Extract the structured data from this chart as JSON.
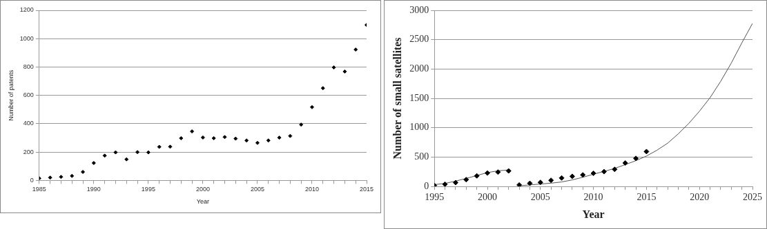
{
  "chart_data": [
    {
      "type": "scatter",
      "xlabel": "Year",
      "ylabel": "Number of patents",
      "grid": "y",
      "marker": "diamond",
      "legend": false,
      "xlim": [
        1985,
        2015
      ],
      "ylim": [
        0,
        1200
      ],
      "xticks": [
        1985,
        {
          "value": 1986,
          "label": null
        },
        {
          "value": 1987,
          "label": null
        },
        {
          "value": 1988,
          "label": null
        },
        {
          "value": 1989,
          "label": null
        },
        1990,
        {
          "value": 1991,
          "label": null
        },
        {
          "value": 1992,
          "label": null
        },
        {
          "value": 1993,
          "label": null
        },
        {
          "value": 1994,
          "label": null
        },
        1995,
        {
          "value": 1996,
          "label": null
        },
        {
          "value": 1997,
          "label": null
        },
        {
          "value": 1998,
          "label": null
        },
        {
          "value": 1999,
          "label": null
        },
        2000,
        {
          "value": 2001,
          "label": null
        },
        {
          "value": 2002,
          "label": null
        },
        {
          "value": 2003,
          "label": null
        },
        {
          "value": 2004,
          "label": null
        },
        2005,
        {
          "value": 2006,
          "label": null
        },
        {
          "value": 2007,
          "label": null
        },
        {
          "value": 2008,
          "label": null
        },
        {
          "value": 2009,
          "label": null
        },
        2010,
        {
          "value": 2011,
          "label": null
        },
        {
          "value": 2012,
          "label": null
        },
        {
          "value": 2013,
          "label": null
        },
        {
          "value": 2014,
          "label": null
        },
        2015
      ],
      "yticks": [
        0,
        200,
        400,
        600,
        800,
        1000,
        1200
      ],
      "series": [
        {
          "color": "#000000",
          "x": [
            1985,
            1986,
            1987,
            1988,
            1989,
            1990,
            1991,
            1992,
            1993,
            1994,
            1995,
            1996,
            1997,
            1998,
            1999,
            2000,
            2001,
            2002,
            2003,
            2004,
            2005,
            2006,
            2007,
            2008,
            2009,
            2010,
            2011,
            2012,
            2013,
            2014,
            2015
          ],
          "values": [
            15,
            20,
            25,
            32,
            60,
            123,
            175,
            198,
            149,
            200,
            198,
            237,
            238,
            298,
            346,
            303,
            298,
            306,
            295,
            282,
            265,
            282,
            302,
            314,
            394,
            517,
            651,
            797,
            768,
            923,
            1097
          ]
        }
      ]
    },
    {
      "type": "scatter",
      "xlabel": "Year",
      "ylabel": "Number of small satellites",
      "grid": "y",
      "marker": "diamond",
      "legend": false,
      "xlim": [
        1995,
        2025
      ],
      "ylim": [
        0,
        3000
      ],
      "xticks": [
        1995,
        {
          "value": 1996,
          "label": null
        },
        {
          "value": 1997,
          "label": null
        },
        {
          "value": 1998,
          "label": null
        },
        {
          "value": 1999,
          "label": null
        },
        2000,
        {
          "value": 2001,
          "label": null
        },
        {
          "value": 2002,
          "label": null
        },
        {
          "value": 2003,
          "label": null
        },
        {
          "value": 2004,
          "label": null
        },
        2005,
        {
          "value": 2006,
          "label": null
        },
        {
          "value": 2007,
          "label": null
        },
        {
          "value": 2008,
          "label": null
        },
        {
          "value": 2009,
          "label": null
        },
        2010,
        {
          "value": 2011,
          "label": null
        },
        {
          "value": 2012,
          "label": null
        },
        {
          "value": 2013,
          "label": null
        },
        {
          "value": 2014,
          "label": null
        },
        2015,
        {
          "value": 2016,
          "label": null
        },
        {
          "value": 2017,
          "label": null
        },
        {
          "value": 2018,
          "label": null
        },
        {
          "value": 2019,
          "label": null
        },
        2020,
        {
          "value": 2021,
          "label": null
        },
        {
          "value": 2022,
          "label": null
        },
        {
          "value": 2023,
          "label": null
        },
        {
          "value": 2024,
          "label": null
        },
        2025
      ],
      "yticks": [
        0,
        500,
        1000,
        1500,
        2000,
        2500,
        3000
      ],
      "series": [
        {
          "color": "#000000",
          "x": [
            1995,
            1996,
            1997,
            1998,
            1999,
            2000,
            2001,
            2002,
            2003,
            2004,
            2005,
            2006,
            2007,
            2008,
            2009,
            2010,
            2011,
            2012,
            2013,
            2014,
            2015
          ],
          "values": [
            16,
            36,
            64,
            115,
            179,
            227,
            243,
            263,
            24,
            52,
            68,
            103,
            143,
            171,
            195,
            223,
            251,
            290,
            398,
            477,
            593
          ]
        },
        {
          "type": "line",
          "marker": "none",
          "line_style": "solid",
          "color": "#555555",
          "x": [
            1995,
            1996,
            1997,
            1998,
            1999,
            2000,
            2001,
            2002
          ],
          "values": [
            30,
            50,
            90,
            135,
            185,
            235,
            265,
            280
          ]
        },
        {
          "type": "line",
          "marker": "none",
          "line_style": "solid",
          "color": "#555555",
          "x": [
            2003,
            2004,
            2005,
            2006,
            2007,
            2008,
            2009,
            2010,
            2011,
            2012,
            2013,
            2014,
            2015,
            2016,
            2017,
            2018,
            2019,
            2020,
            2021,
            2022,
            2023,
            2024,
            2025
          ],
          "values": [
            10,
            25,
            40,
            55,
            75,
            110,
            155,
            207,
            255,
            306,
            370,
            438,
            517,
            617,
            736,
            895,
            1074,
            1281,
            1512,
            1790,
            2101,
            2447,
            2777
          ]
        }
      ]
    }
  ]
}
